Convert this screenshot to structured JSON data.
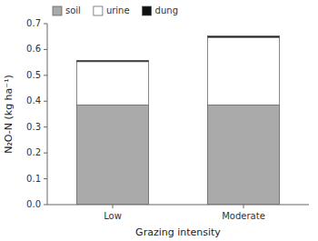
{
  "chart_data": {
    "type": "bar",
    "stacked": true,
    "categories": [
      "Low",
      "Moderate"
    ],
    "series": [
      {
        "name": "soil",
        "color": "#aaaaaa",
        "values": [
          0.385,
          0.385
        ]
      },
      {
        "name": "urine",
        "color": "#ffffff",
        "values": [
          0.168,
          0.262
        ]
      },
      {
        "name": "dung",
        "color": "#111111",
        "values": [
          0.005,
          0.005
        ]
      }
    ],
    "xlabel": "Grazing intensity",
    "ylabel": "N₂O-N (kg ha⁻¹)",
    "ylim": [
      0.0,
      0.7
    ],
    "yticks": [
      {
        "value": 0,
        "label": "0.0"
      },
      0.1,
      0.2,
      0.3,
      0.4,
      0.5,
      0.6,
      0.7
    ],
    "legend": "upper left",
    "grid": false
  }
}
